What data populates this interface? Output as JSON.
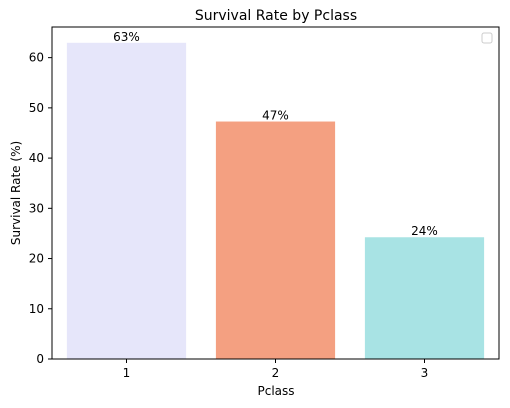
{
  "chart_data": {
    "type": "bar",
    "title": "Survival Rate by Pclass",
    "xlabel": "Pclass",
    "ylabel": "Survival Rate (%)",
    "categories": [
      "1",
      "2",
      "3"
    ],
    "values": [
      62.96,
      47.28,
      24.24
    ],
    "data_labels": [
      "63%",
      "47%",
      "24%"
    ],
    "colors": [
      "#e6e6fa",
      "#f4a081",
      "#a8e3e4"
    ],
    "ylim": [
      0,
      66.1
    ],
    "yticks": [
      0,
      10,
      20,
      30,
      40,
      50,
      60
    ],
    "grid": false,
    "legend": {
      "placement": "top-right",
      "entries": []
    }
  }
}
